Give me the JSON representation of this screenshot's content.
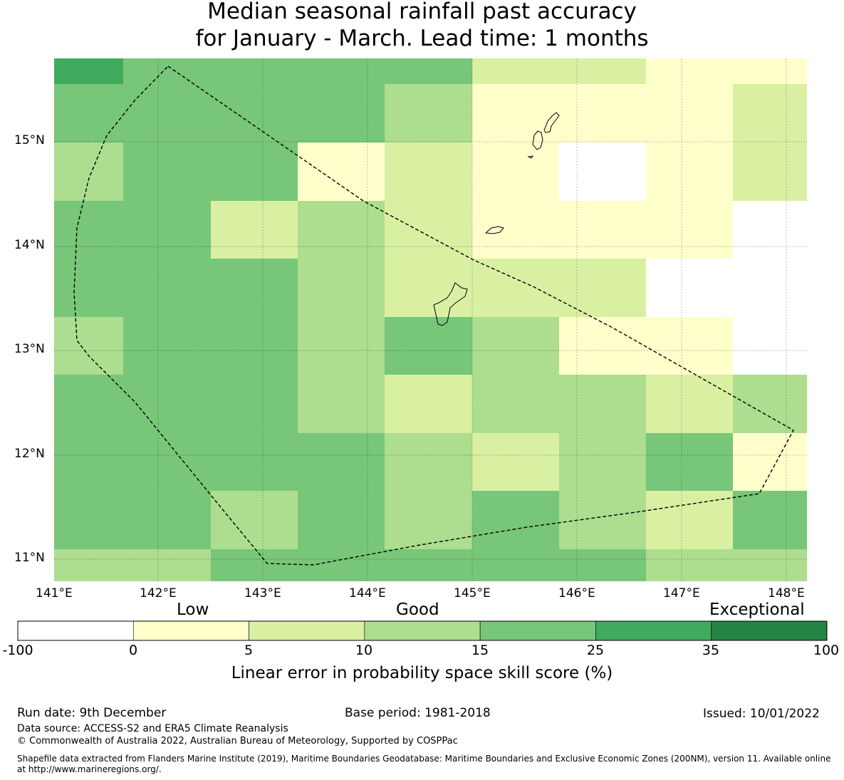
{
  "title": {
    "line1": "Median seasonal rainfall past accuracy",
    "line2": "for January - March. Lead time: 1 months"
  },
  "map": {
    "lon_labels": [
      "141°E",
      "142°E",
      "143°E",
      "144°E",
      "145°E",
      "146°E",
      "147°E",
      "148°E"
    ],
    "lat_labels": [
      "15°N",
      "14°N",
      "13°N",
      "12°N",
      "11°N"
    ],
    "class_colors": {
      "neg": "#ffffff",
      "c0": "#ffffcc",
      "c5": "#d9f0a3",
      "c10": "#addd8e",
      "c15": "#78c679",
      "c25": "#41ab5d",
      "c35": "#238443"
    },
    "grid_rows": [
      [
        "c25",
        "c15",
        "c15",
        "c15",
        "c15",
        "c5",
        "c5",
        "c0",
        "c0"
      ],
      [
        "c15",
        "c15",
        "c15",
        "c15",
        "c10",
        "c0",
        "c0",
        "c0",
        "c5"
      ],
      [
        "c10",
        "c15",
        "c15",
        "c0",
        "c5",
        "c0",
        "neg",
        "c0",
        "c5"
      ],
      [
        "c15",
        "c15",
        "c5",
        "c10",
        "c5",
        "c0",
        "c0",
        "c0",
        "neg"
      ],
      [
        "c15",
        "c15",
        "c15",
        "c10",
        "c5",
        "c5",
        "c5",
        "neg",
        "neg"
      ],
      [
        "c10",
        "c15",
        "c15",
        "c10",
        "c15",
        "c10",
        "c0",
        "c0",
        "neg"
      ],
      [
        "c15",
        "c15",
        "c15",
        "c10",
        "c5",
        "c10",
        "c10",
        "c5",
        "c10"
      ],
      [
        "c15",
        "c15",
        "c15",
        "c15",
        "c10",
        "c5",
        "c10",
        "c15",
        "c0"
      ],
      [
        "c15",
        "c15",
        "c10",
        "c15",
        "c10",
        "c15",
        "c10",
        "c5",
        "c15"
      ],
      [
        "c10",
        "c10",
        "c15",
        "c15",
        "c15",
        "c15",
        "c15",
        "c10",
        "c10"
      ]
    ]
  },
  "colorbar": {
    "words": {
      "low": "Low",
      "good": "Good",
      "exceptional": "Exceptional"
    },
    "ticks": [
      "-100",
      "0",
      "5",
      "10",
      "15",
      "25",
      "35",
      "100"
    ],
    "colors": [
      "#ffffff",
      "#ffffcc",
      "#d9f0a3",
      "#addd8e",
      "#78c679",
      "#41ab5d",
      "#238443"
    ],
    "label": "Linear error in probability space skill score (%)"
  },
  "footer": {
    "run_date": "Run date: 9th December",
    "base_period": "Base period: 1981-2018",
    "issued": "Issued: 10/01/2022",
    "data_source": "Data source: ACCESS-S2 and ERA5 Climate Reanalysis",
    "copyright": "© Commonwealth of Australia 2022, Australian Bureau of Meteorology, Supported by COSPPac",
    "shapefile_1": "Shapefile data extracted from Flanders Marine Institute (2019), Maritime Boundaries Geodatabase: Maritime Boundaries and Exclusive Economic Zones (200NM), version 11. Available online",
    "shapefile_2": "at http://www.marineregions.org/."
  }
}
